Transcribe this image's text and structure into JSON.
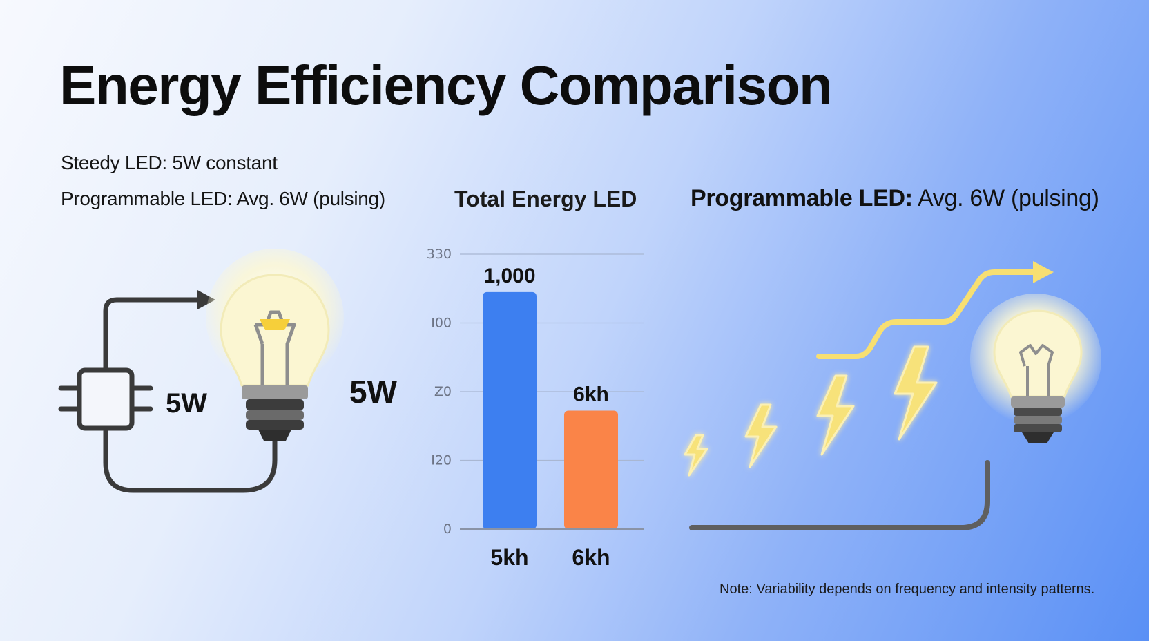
{
  "title": "Energy Efficiency Comparison",
  "subtitle_steady": "Steedy LED: 5W constant",
  "subtitle_programmable": "Programmable LED: Avg. 6W (pulsing)",
  "right_heading": {
    "bold": "Programmable LED:",
    "rest": " Avg. 6W (pulsing)"
  },
  "left_diagram": {
    "chip_watt_label": "5W",
    "bulb_watt_label": "5W"
  },
  "note": "Note: Variability depends on frequency and intensity patterns.",
  "icons": [
    "chip-icon",
    "arrow-icon",
    "light-bulb-icon",
    "lightning-bolt-icon",
    "trend-arrow-icon"
  ],
  "colors": {
    "bar_blue": "#3d7ff0",
    "bar_orange": "#fa8448",
    "bolt_yellow": "#f7df72",
    "bulb_glow": "#fbf7d6"
  },
  "chart_data": {
    "type": "bar",
    "title": "Total Energy LED",
    "categories": [
      "5kh",
      "6kh"
    ],
    "values": [
      1000,
      500
    ],
    "data_labels": [
      "1,000",
      "6kh"
    ],
    "y_tick_labels": [
      "0",
      "I20",
      "Z0",
      "I00",
      "330"
    ],
    "ylim": [
      0,
      1160
    ],
    "grid": true,
    "xlabel": "",
    "ylabel": ""
  }
}
